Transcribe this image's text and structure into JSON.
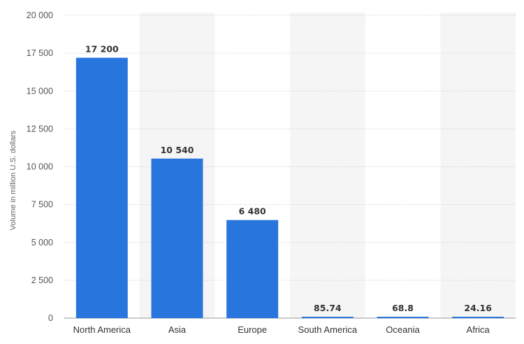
{
  "chart_data": {
    "type": "bar",
    "title": "",
    "xlabel": "",
    "ylabel": "Volume in million U.S. dollars",
    "categories": [
      "North America",
      "Asia",
      "Europe",
      "South America",
      "Oceania",
      "Africa"
    ],
    "values": [
      17200,
      10540,
      6480,
      85.74,
      68.8,
      24.16
    ],
    "value_labels": [
      "17 200",
      "10 540",
      "6 480",
      "85.74",
      "68.8",
      "24.16"
    ],
    "yticks": [
      0,
      2500,
      5000,
      7500,
      10000,
      12500,
      15000,
      17500,
      20000
    ],
    "ytick_labels": [
      "0",
      "2 500",
      "5 000",
      "7 500",
      "10 000",
      "12 500",
      "15 000",
      "17 500",
      "20 000"
    ],
    "ylim": [
      0,
      20000
    ],
    "grid": "horizontal dotted",
    "legend": "none",
    "colors": {
      "bar": "#2876dd",
      "band": "#f5f5f5",
      "grid": "#cfcfcf"
    }
  }
}
